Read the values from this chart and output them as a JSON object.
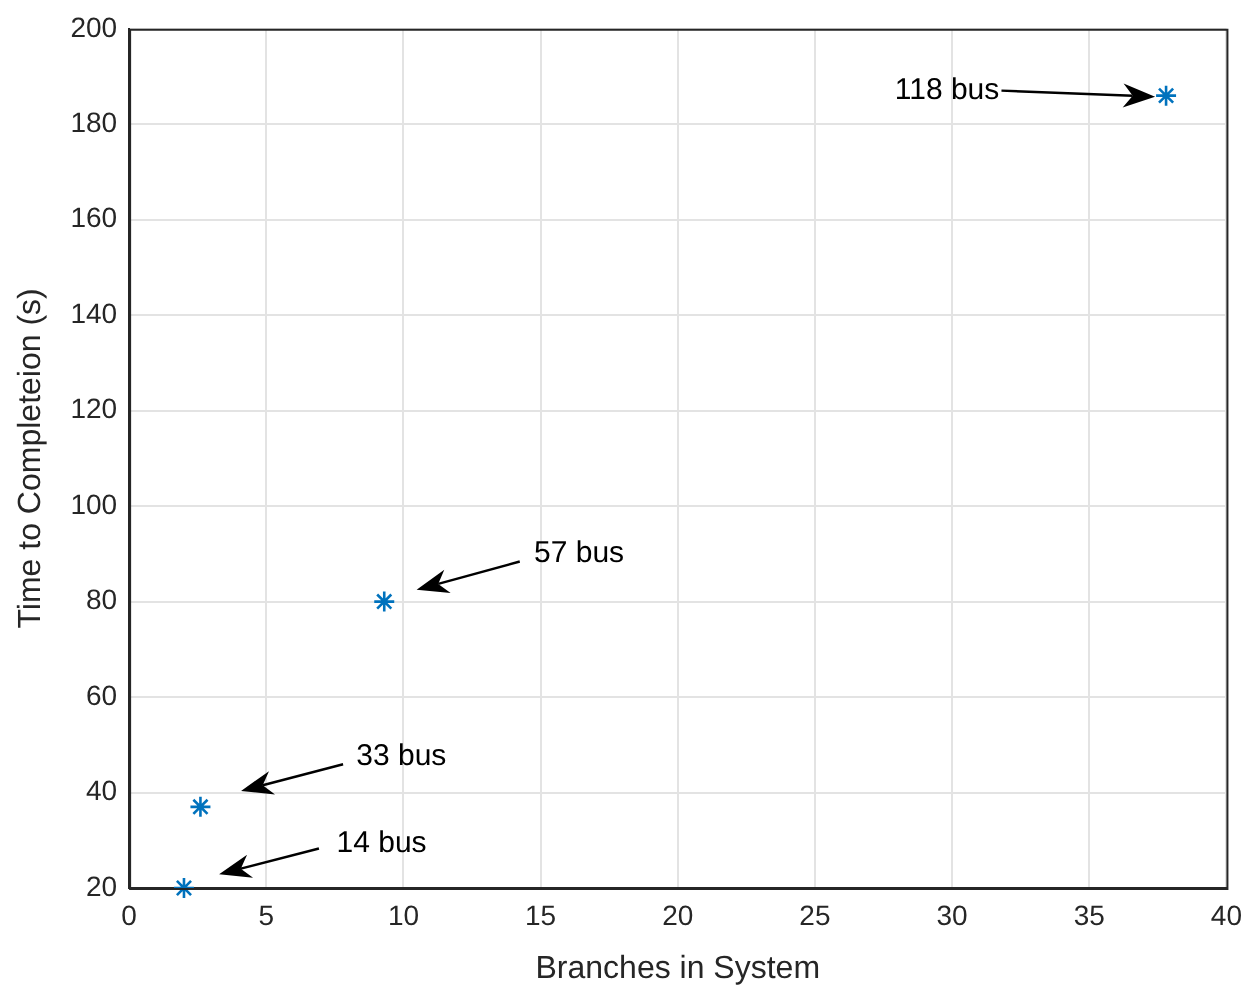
{
  "chart_data": {
    "type": "scatter",
    "xlabel": "Branches in System",
    "ylabel": "Time to Completeion (s)",
    "x": [
      2,
      2.6,
      9.3,
      37.8
    ],
    "values": [
      20,
      37,
      80,
      186
    ],
    "color": "#0072bd",
    "marker": "cross",
    "xlim": [
      0,
      40
    ],
    "xticks": [
      0,
      5,
      10,
      15,
      20,
      25,
      30,
      35,
      40
    ],
    "ylim": [
      20,
      200
    ],
    "yticks": [
      20,
      40,
      60,
      80,
      100,
      120,
      140,
      160,
      180,
      200
    ],
    "grid": true,
    "annotations": [
      "14 bus",
      "33 bus",
      "57 bus",
      "118 bus"
    ]
  }
}
